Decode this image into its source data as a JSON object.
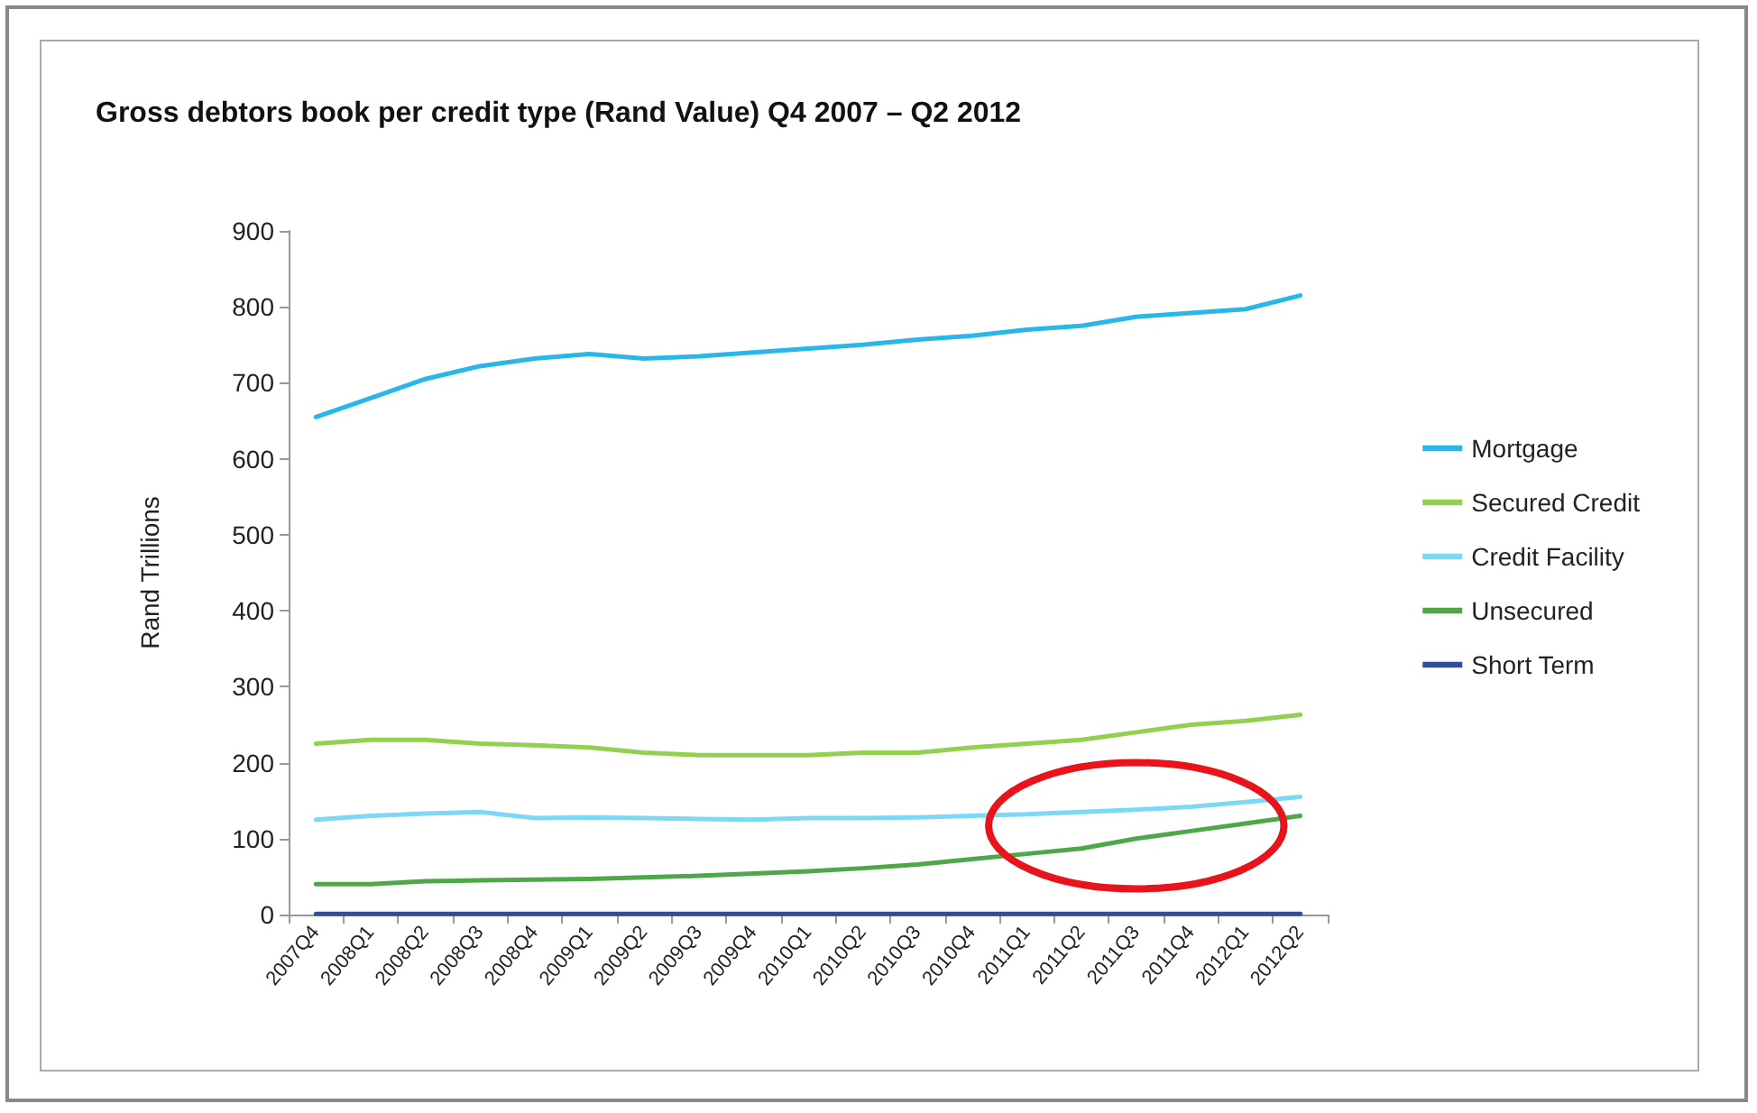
{
  "chart_data": {
    "type": "line",
    "title": "Gross debtors book per credit type (Rand Value) Q4 2007 – Q2 2012",
    "ylabel": "Rand Trillions",
    "categories": [
      "2007Q4",
      "2008Q1",
      "2008Q2",
      "2008Q3",
      "2008Q4",
      "2009Q1",
      "2009Q2",
      "2009Q3",
      "2009Q4",
      "2010Q1",
      "2010Q2",
      "2010Q3",
      "2010Q4",
      "2011Q1",
      "2011Q2",
      "2011Q3",
      "2011Q4",
      "2012Q1",
      "2012Q2"
    ],
    "series": [
      {
        "name": "Mortgage",
        "color": "#29b6e8",
        "values": [
          655,
          680,
          705,
          722,
          732,
          738,
          732,
          735,
          740,
          745,
          750,
          757,
          762,
          770,
          775,
          787,
          792,
          797,
          815
        ]
      },
      {
        "name": "Secured Credit",
        "color": "#92d050",
        "values": [
          225,
          230,
          230,
          225,
          223,
          220,
          213,
          210,
          210,
          210,
          213,
          213,
          220,
          225,
          230,
          240,
          250,
          255,
          263
        ]
      },
      {
        "name": "Credit Facility",
        "color": "#7dd8f5",
        "values": [
          125,
          130,
          133,
          135,
          127,
          128,
          127,
          126,
          125,
          127,
          127,
          128,
          130,
          132,
          135,
          138,
          142,
          148,
          155
        ]
      },
      {
        "name": "Unsecured",
        "color": "#4ea84a",
        "values": [
          40,
          40,
          44,
          45,
          46,
          47,
          49,
          51,
          54,
          57,
          61,
          66,
          73,
          80,
          87,
          100,
          110,
          120,
          130
        ]
      },
      {
        "name": "Short Term",
        "color": "#2f4f9e",
        "values": [
          1,
          1,
          1,
          1,
          1,
          1,
          1,
          1,
          1,
          1,
          1,
          1,
          1,
          1,
          1,
          1,
          1,
          1,
          1
        ]
      }
    ],
    "ylim": [
      0,
      900
    ],
    "yticks": [
      0,
      100,
      200,
      300,
      400,
      500,
      600,
      700,
      800,
      900
    ],
    "grid": false,
    "legend": "right",
    "marker": "none",
    "line_style": "solid"
  }
}
